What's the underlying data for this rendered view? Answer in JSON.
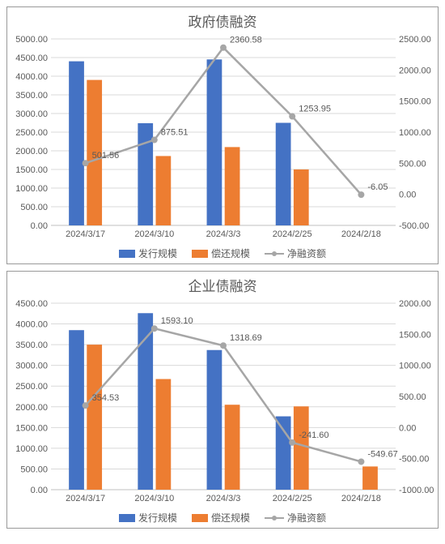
{
  "charts": [
    {
      "title": "政府债融资",
      "type": "bar-line-combo",
      "categories": [
        "2024/3/17",
        "2024/3/10",
        "2024/3/3",
        "2024/2/25",
        "2024/2/18"
      ],
      "bar_series": [
        {
          "name": "发行规模",
          "color": "#4472c4",
          "values": [
            4400,
            2740,
            4450,
            2750,
            0
          ]
        },
        {
          "name": "偿还规模",
          "color": "#ed7d31",
          "values": [
            3900,
            1860,
            2100,
            1500,
            0
          ]
        }
      ],
      "line_series": {
        "name": "净融资额",
        "color": "#a6a6a6",
        "values": [
          501.56,
          875.51,
          2360.58,
          1253.95,
          -6.05
        ],
        "labels": [
          "501.56",
          "875.51",
          "2360.58",
          "1253.95",
          "-6.05"
        ]
      },
      "left_axis": {
        "min": 0,
        "max": 5000,
        "step": 500,
        "format": "fixed2"
      },
      "right_axis": {
        "min": -500,
        "max": 2500,
        "step": 500,
        "format": "fixed2"
      },
      "label_fontsize": 11,
      "title_fontsize": 17,
      "background_color": "#ffffff",
      "grid_color": "#d9d9d9"
    },
    {
      "title": "企业债融资",
      "type": "bar-line-combo",
      "categories": [
        "2024/3/17",
        "2024/3/10",
        "2024/3/3",
        "2024/2/25",
        "2024/2/18"
      ],
      "bar_series": [
        {
          "name": "发行规模",
          "color": "#4472c4",
          "values": [
            3850,
            4260,
            3370,
            1770,
            0
          ]
        },
        {
          "name": "偿还规模",
          "color": "#ed7d31",
          "values": [
            3500,
            2670,
            2050,
            2010,
            560
          ]
        }
      ],
      "line_series": {
        "name": "净融资额",
        "color": "#a6a6a6",
        "values": [
          354.53,
          1593.1,
          1318.69,
          -241.6,
          -549.67
        ],
        "labels": [
          "354.53",
          "1593.10",
          "1318.69",
          "-241.60",
          "-549.67"
        ]
      },
      "left_axis": {
        "min": 0,
        "max": 4500,
        "step": 500,
        "format": "fixed2"
      },
      "right_axis": {
        "min": -1000,
        "max": 2000,
        "step": 500,
        "format": "fixed2"
      },
      "label_fontsize": 11,
      "title_fontsize": 17,
      "background_color": "#ffffff",
      "grid_color": "#d9d9d9"
    }
  ],
  "legend_labels": {
    "bar1": "发行规模",
    "bar2": "偿还规模",
    "line": "净融资额"
  }
}
